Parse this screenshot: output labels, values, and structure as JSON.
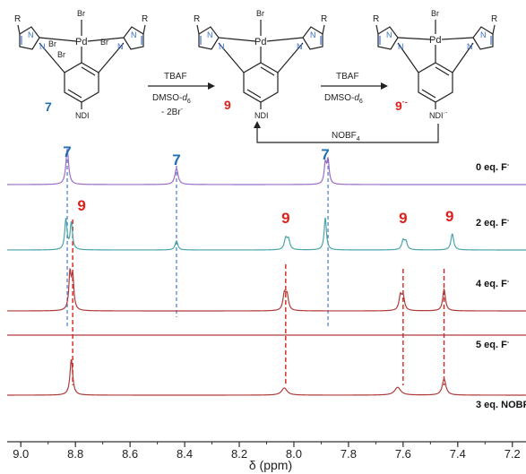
{
  "scheme": {
    "compounds": [
      {
        "id": "c7",
        "label": "7",
        "label_color": "#1f6fb3",
        "metal": "Pd",
        "ligands": [
          "Br",
          "Br",
          "Br",
          "Br"
        ],
        "substituent": "NDI",
        "n_group": "R"
      },
      {
        "id": "c9",
        "label": "9",
        "label_color": "#e0201b",
        "metal": "Pd",
        "ligands": [
          "Br"
        ],
        "substituent": "NDI",
        "n_group": "R"
      },
      {
        "id": "c9r",
        "label": "9",
        "label_sup": "·-",
        "label_color": "#e0201b",
        "metal": "Pd",
        "ligands": [
          "Br"
        ],
        "substituent": "NDI",
        "substituent_sup": "·-",
        "n_group": "R"
      }
    ],
    "arrow1": {
      "above": "TBAF",
      "below1": "DMSO-",
      "below1_sub": "d",
      "below1_sub2": "6",
      "below2": "- 2Br",
      "below2_sup": "-"
    },
    "arrow2": {
      "above": "TBAF",
      "below1": "DMSO-",
      "below1_sub": "d",
      "below1_sub2": "6"
    },
    "return_arrow": {
      "label": "NOBF",
      "label_sub": "4"
    }
  },
  "chart_data": {
    "type": "nmr_stack",
    "xlabel": "δ (ppm)",
    "xlim": [
      9.05,
      7.15
    ],
    "ticks": [
      "9.0",
      "8.8",
      "8.6",
      "8.4",
      "8.2",
      "8.0",
      "7.8",
      "7.6",
      "7.4",
      "7.2"
    ],
    "tick_values": [
      9.0,
      8.8,
      8.6,
      8.4,
      8.2,
      8.0,
      7.8,
      7.6,
      7.4,
      7.2
    ],
    "series": [
      {
        "name": "0 eq. F",
        "sup": "-",
        "color": "#9b6dc8",
        "peaks": [
          {
            "ppm": 8.83,
            "h": 1.0,
            "w": 0.006
          },
          {
            "ppm": 8.43,
            "h": 0.45,
            "w": 0.007
          },
          {
            "ppm": 7.885,
            "h": 0.55,
            "w": 0.005
          },
          {
            "ppm": 7.875,
            "h": 0.65,
            "w": 0.005
          }
        ]
      },
      {
        "name": "2 eq. F",
        "sup": "-",
        "color": "#4aa5a8",
        "peaks": [
          {
            "ppm": 8.835,
            "h": 0.85,
            "w": 0.005
          },
          {
            "ppm": 8.815,
            "h": 0.75,
            "w": 0.005
          },
          {
            "ppm": 8.43,
            "h": 0.25,
            "w": 0.006
          },
          {
            "ppm": 8.03,
            "h": 0.3,
            "w": 0.006
          },
          {
            "ppm": 8.02,
            "h": 0.28,
            "w": 0.006
          },
          {
            "ppm": 7.885,
            "h": 0.9,
            "w": 0.005
          },
          {
            "ppm": 7.6,
            "h": 0.25,
            "w": 0.006
          },
          {
            "ppm": 7.59,
            "h": 0.22,
            "w": 0.006
          },
          {
            "ppm": 7.42,
            "h": 0.45,
            "w": 0.006
          }
        ]
      },
      {
        "name": "4 eq. F",
        "sup": "-",
        "color": "#b03a3a",
        "peaks": [
          {
            "ppm": 8.82,
            "h": 1.0,
            "w": 0.005
          },
          {
            "ppm": 8.81,
            "h": 0.9,
            "w": 0.005
          },
          {
            "ppm": 8.035,
            "h": 0.45,
            "w": 0.006
          },
          {
            "ppm": 8.025,
            "h": 0.42,
            "w": 0.006
          },
          {
            "ppm": 7.61,
            "h": 0.4,
            "w": 0.006
          },
          {
            "ppm": 7.6,
            "h": 0.38,
            "w": 0.006
          },
          {
            "ppm": 7.45,
            "h": 0.6,
            "w": 0.006
          }
        ]
      },
      {
        "name": "5 eq. F",
        "sup": "-",
        "color": "#b03a3a",
        "peaks": []
      },
      {
        "name": "3 eq. NOBF",
        "sub": "4",
        "color": "#b03a3a",
        "peaks": [
          {
            "ppm": 8.815,
            "h": 1.0,
            "w": 0.006
          },
          {
            "ppm": 8.035,
            "h": 0.2,
            "w": 0.012
          },
          {
            "ppm": 7.62,
            "h": 0.22,
            "w": 0.013
          },
          {
            "ppm": 7.45,
            "h": 0.45,
            "w": 0.008
          }
        ]
      }
    ],
    "assign_7": [
      {
        "text": "7",
        "ppm": 8.83
      },
      {
        "text": "7",
        "ppm": 8.43
      },
      {
        "text": "7",
        "ppm": 7.885
      }
    ],
    "assign_9": [
      {
        "text": "9",
        "ppm": 8.81
      },
      {
        "text": "9",
        "ppm": 8.03
      },
      {
        "text": "9",
        "ppm": 7.6
      },
      {
        "text": "9",
        "ppm": 7.43
      }
    ],
    "guide_7_color": "#4a78c8",
    "guide_9_color": "#d8231b",
    "grid": false
  }
}
